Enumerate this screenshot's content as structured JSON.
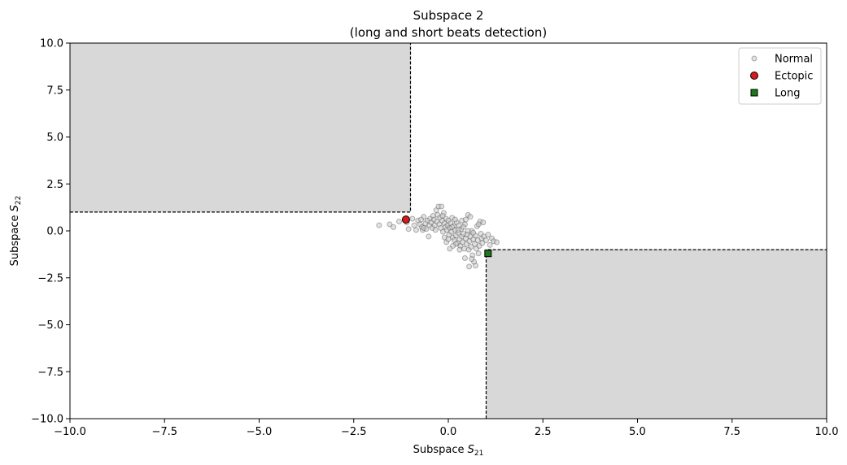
{
  "chart_data": {
    "type": "scatter",
    "title": "Subspace 2",
    "subtitle": "(long and short beats detection)",
    "xlabel_main": "Subspace ",
    "xlabel_sub": "21",
    "ylabel_main": "Subspace ",
    "ylabel_sub": "22",
    "symbol": "S",
    "xlim": [
      -10,
      10
    ],
    "ylim": [
      -10,
      10
    ],
    "xticks": [
      -10,
      -7.5,
      -5,
      -2.5,
      0,
      2.5,
      5,
      7.5,
      10
    ],
    "xtick_labels": [
      "−10.0",
      "−7.5",
      "−5.0",
      "−2.5",
      "0.0",
      "2.5",
      "5.0",
      "7.5",
      "10.0"
    ],
    "yticks": [
      10,
      7.5,
      5,
      2.5,
      0,
      -2.5,
      -5,
      -7.5,
      -10
    ],
    "ytick_labels": [
      "10.0",
      "7.5",
      "5.0",
      "2.5",
      "0.0",
      "−2.5",
      "−5.0",
      "−7.5",
      "−10.0"
    ],
    "grid": false,
    "legend_position": "top-right",
    "regions": [
      {
        "x": [
          -10,
          -1
        ],
        "y": [
          1,
          10
        ],
        "color": "#d8d8d8"
      },
      {
        "x": [
          1,
          10
        ],
        "y": [
          -10,
          -1
        ],
        "color": "#d8d8d8"
      }
    ],
    "thresholds": [
      {
        "points": [
          [
            -10,
            1
          ],
          [
            -1,
            1
          ],
          [
            -1,
            10
          ]
        ]
      },
      {
        "points": [
          [
            1,
            -10
          ],
          [
            1,
            -1
          ],
          [
            10,
            -1
          ]
        ]
      }
    ],
    "series": [
      {
        "name": "Normal",
        "marker": "circle",
        "color": "#c9c9c9",
        "edge": "#555555",
        "points": [
          [
            -1.83,
            0.3
          ],
          [
            -1.55,
            0.35
          ],
          [
            -1.45,
            0.2
          ],
          [
            -1.3,
            0.5
          ],
          [
            -1.1,
            0.45
          ],
          [
            -0.95,
            0.65
          ],
          [
            -0.9,
            0.3
          ],
          [
            -0.85,
            0.05
          ],
          [
            -0.8,
            0.55
          ],
          [
            -0.75,
            0.35
          ],
          [
            -0.7,
            0.2
          ],
          [
            -0.68,
            0.05
          ],
          [
            -0.65,
            0.75
          ],
          [
            -0.6,
            0.4
          ],
          [
            -0.58,
            0.1
          ],
          [
            -0.55,
            0.55
          ],
          [
            -0.52,
            -0.3
          ],
          [
            -0.5,
            0.3
          ],
          [
            -0.48,
            0.65
          ],
          [
            -0.45,
            0.45
          ],
          [
            -0.42,
            0.15
          ],
          [
            -0.4,
            0.8
          ],
          [
            -0.38,
            0.6
          ],
          [
            -0.36,
            0.3
          ],
          [
            -0.34,
            0.05
          ],
          [
            -0.32,
            1.1
          ],
          [
            -0.3,
            0.5
          ],
          [
            -0.28,
            0.85
          ],
          [
            -0.26,
            1.3
          ],
          [
            -0.24,
            0.35
          ],
          [
            -0.22,
            0.7
          ],
          [
            -0.2,
            0.15
          ],
          [
            -0.18,
            1.3
          ],
          [
            -0.16,
            0.55
          ],
          [
            -0.14,
            -0.05
          ],
          [
            -0.12,
            0.95
          ],
          [
            -0.1,
            0.4
          ],
          [
            -0.08,
            0.2
          ],
          [
            -0.06,
            0.65
          ],
          [
            -0.04,
            0.05
          ],
          [
            -0.02,
            0.3
          ],
          [
            0.0,
            0.55
          ],
          [
            0.02,
            -0.2
          ],
          [
            0.04,
            0.15
          ],
          [
            0.06,
            0.4
          ],
          [
            0.08,
            -0.05
          ],
          [
            0.1,
            0.7
          ],
          [
            0.12,
            -0.35
          ],
          [
            0.14,
            0.25
          ],
          [
            0.16,
            -0.5
          ],
          [
            0.18,
            0.05
          ],
          [
            0.2,
            -0.25
          ],
          [
            0.22,
            0.45
          ],
          [
            0.24,
            -0.65
          ],
          [
            0.26,
            -0.1
          ],
          [
            0.28,
            0.3
          ],
          [
            0.3,
            -0.45
          ],
          [
            0.32,
            -0.8
          ],
          [
            0.34,
            0.1
          ],
          [
            0.36,
            -0.3
          ],
          [
            0.38,
            -0.6
          ],
          [
            0.4,
            -0.15
          ],
          [
            0.42,
            -0.95
          ],
          [
            0.44,
            0.35
          ],
          [
            0.46,
            -0.4
          ],
          [
            0.48,
            -0.7
          ],
          [
            0.5,
            -0.2
          ],
          [
            0.52,
            0.85
          ],
          [
            0.54,
            -1.0
          ],
          [
            0.56,
            -0.55
          ],
          [
            0.58,
            -0.3
          ],
          [
            0.6,
            -0.85
          ],
          [
            0.62,
            0.0
          ],
          [
            0.64,
            -1.3
          ],
          [
            0.66,
            -0.45
          ],
          [
            0.68,
            -1.65
          ],
          [
            0.7,
            -0.7
          ],
          [
            0.72,
            -0.25
          ],
          [
            0.74,
            -0.95
          ],
          [
            0.76,
            0.25
          ],
          [
            0.78,
            -0.5
          ],
          [
            0.8,
            -1.2
          ],
          [
            0.82,
            -0.8
          ],
          [
            0.84,
            0.5
          ],
          [
            0.86,
            -0.15
          ],
          [
            0.88,
            -0.4
          ],
          [
            0.9,
            -0.65
          ],
          [
            0.92,
            0.45
          ],
          [
            0.94,
            -0.3
          ],
          [
            1.0,
            -0.5
          ],
          [
            1.05,
            -0.2
          ],
          [
            1.1,
            -0.75
          ],
          [
            1.15,
            -0.4
          ],
          [
            1.2,
            -0.55
          ],
          [
            1.28,
            -0.6
          ],
          [
            0.2,
            -0.7
          ],
          [
            0.12,
            -0.8
          ],
          [
            0.04,
            -0.95
          ],
          [
            -0.05,
            -0.6
          ],
          [
            -0.1,
            -0.35
          ],
          [
            0.0,
            -0.45
          ],
          [
            0.3,
            -1.0
          ],
          [
            0.44,
            -1.45
          ],
          [
            0.55,
            -1.9
          ],
          [
            0.72,
            -1.85
          ],
          [
            0.62,
            -1.5
          ],
          [
            0.36,
            0.55
          ],
          [
            0.46,
            0.6
          ],
          [
            0.58,
            0.75
          ],
          [
            0.18,
            0.6
          ],
          [
            -0.15,
            0.8
          ],
          [
            -0.65,
            0.15
          ],
          [
            -0.72,
            0.6
          ],
          [
            -1.05,
            0.1
          ],
          [
            0.1,
            0.2
          ],
          [
            0.26,
            0.05
          ],
          [
            0.4,
            0.2
          ],
          [
            0.52,
            0.0
          ],
          [
            0.66,
            -0.1
          ],
          [
            0.8,
            0.35
          ]
        ]
      },
      {
        "name": "Ectopic",
        "marker": "circle",
        "color": "#d91a1a",
        "edge": "#000000",
        "points": [
          [
            -1.12,
            0.6
          ]
        ]
      },
      {
        "name": "Long",
        "marker": "square",
        "color": "#1a7a1a",
        "edge": "#000000",
        "points": [
          [
            1.05,
            -1.2
          ]
        ]
      }
    ]
  }
}
